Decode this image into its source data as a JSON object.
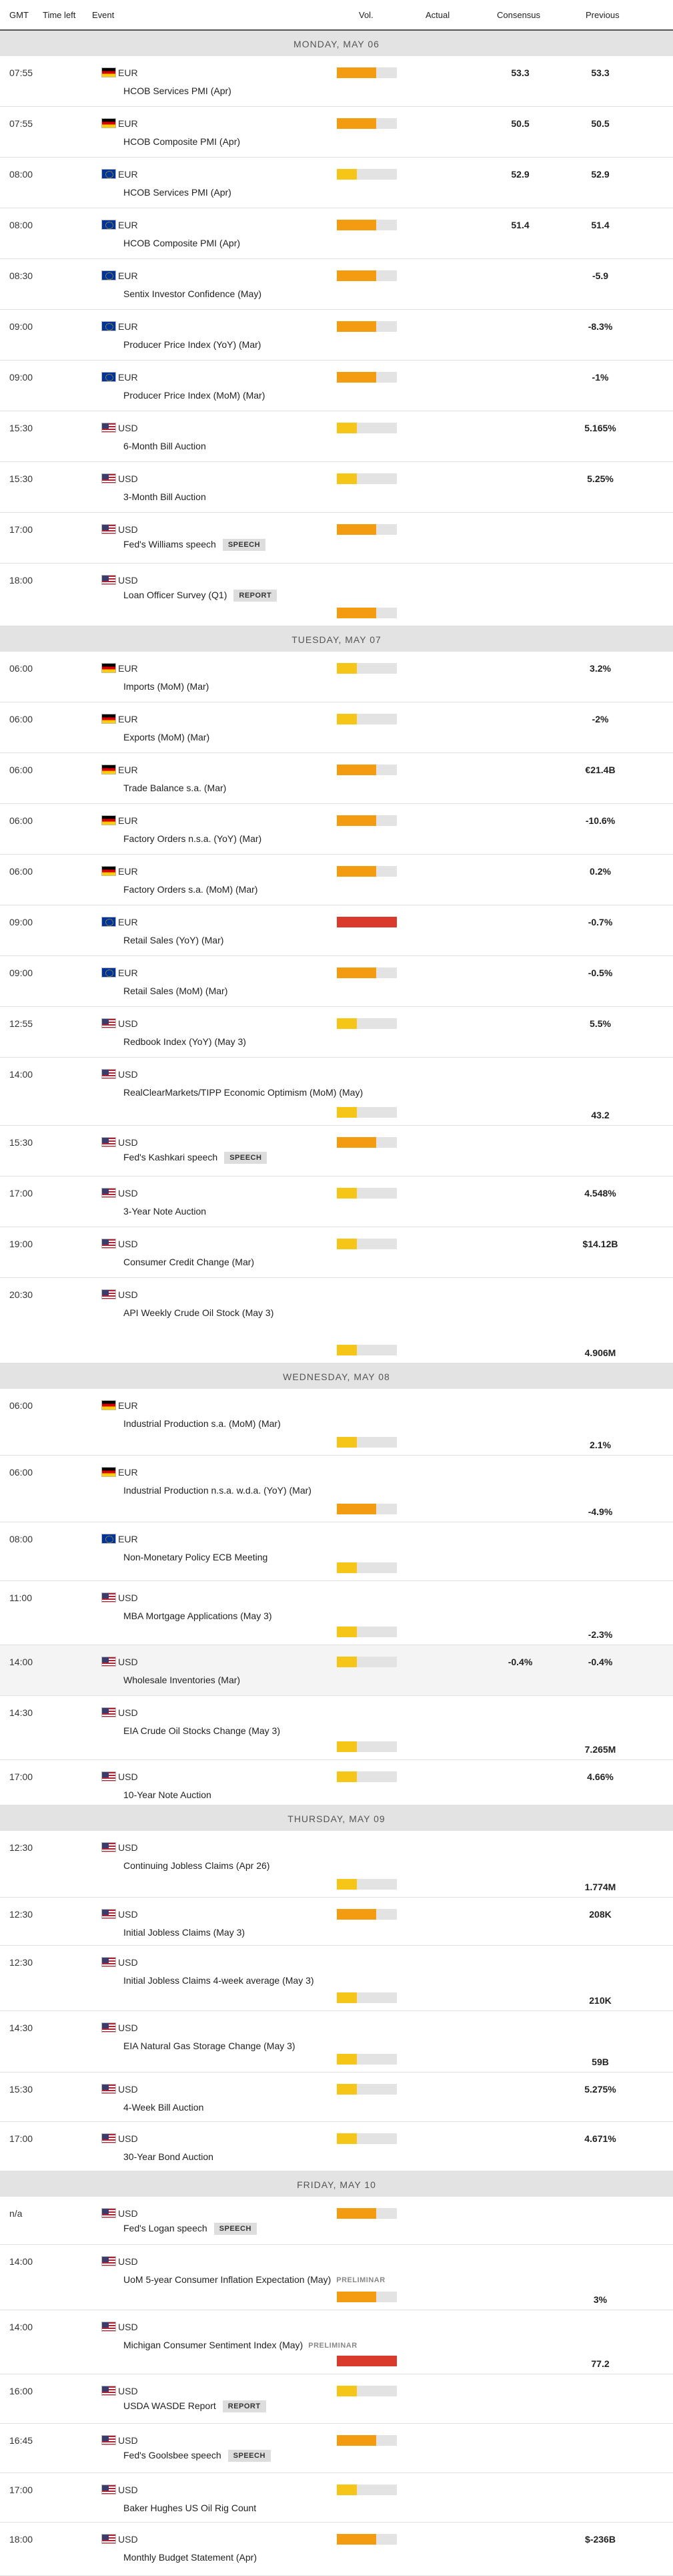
{
  "header": {
    "gmt": "GMT",
    "time_left": "Time left",
    "event": "Event",
    "vol": "Vol.",
    "actual": "Actual",
    "consensus": "Consensus",
    "previous": "Previous"
  },
  "colors": {
    "low": "#f5c518",
    "medium": "#f39c12",
    "high": "#d93a2b"
  },
  "levels": {
    "low": 0.33,
    "medium": 0.66,
    "high": 1.0
  },
  "days": [
    {
      "label": "MONDAY, MAY 06",
      "events": [
        {
          "time": "07:55",
          "flag": "de",
          "currency": "EUR",
          "name": "HCOB Services PMI (Apr)",
          "vol": "medium",
          "consensus": "53.3",
          "previous": "53.3"
        },
        {
          "time": "07:55",
          "flag": "de",
          "currency": "EUR",
          "name": "HCOB Composite PMI (Apr)",
          "vol": "medium",
          "consensus": "50.5",
          "previous": "50.5"
        },
        {
          "time": "08:00",
          "flag": "eu",
          "currency": "EUR",
          "name": "HCOB Services PMI (Apr)",
          "vol": "low",
          "consensus": "52.9",
          "previous": "52.9"
        },
        {
          "time": "08:00",
          "flag": "eu",
          "currency": "EUR",
          "name": "HCOB Composite PMI (Apr)",
          "vol": "medium",
          "consensus": "51.4",
          "previous": "51.4"
        },
        {
          "time": "08:30",
          "flag": "eu",
          "currency": "EUR",
          "name": "Sentix Investor Confidence (May)",
          "vol": "medium",
          "consensus": "",
          "previous": "-5.9"
        },
        {
          "time": "09:00",
          "flag": "eu",
          "currency": "EUR",
          "name": "Producer Price Index (YoY) (Mar)",
          "vol": "medium",
          "consensus": "",
          "previous": "-8.3%"
        },
        {
          "time": "09:00",
          "flag": "eu",
          "currency": "EUR",
          "name": "Producer Price Index (MoM) (Mar)",
          "vol": "medium",
          "consensus": "",
          "previous": "-1%"
        },
        {
          "time": "15:30",
          "flag": "us",
          "currency": "USD",
          "name": "6-Month Bill Auction",
          "vol": "low",
          "consensus": "",
          "previous": "5.165%"
        },
        {
          "time": "15:30",
          "flag": "us",
          "currency": "USD",
          "name": "3-Month Bill Auction",
          "vol": "low",
          "consensus": "",
          "previous": "5.25%"
        },
        {
          "time": "17:00",
          "flag": "us",
          "currency": "USD",
          "name": "Fed's Williams speech",
          "tag": "SPEECH",
          "vol": "medium",
          "consensus": "",
          "previous": ""
        },
        {
          "time": "18:00",
          "flag": "us",
          "currency": "USD",
          "name": "Loan Officer Survey (Q1)",
          "tag": "REPORT",
          "vol": "medium",
          "consensus": "",
          "previous": ""
        }
      ]
    },
    {
      "label": "TUESDAY, MAY 07",
      "events": [
        {
          "time": "06:00",
          "flag": "de",
          "currency": "EUR",
          "name": "Imports (MoM) (Mar)",
          "vol": "low",
          "consensus": "",
          "previous": "3.2%"
        },
        {
          "time": "06:00",
          "flag": "de",
          "currency": "EUR",
          "name": "Exports (MoM) (Mar)",
          "vol": "low",
          "consensus": "",
          "previous": "-2%"
        },
        {
          "time": "06:00",
          "flag": "de",
          "currency": "EUR",
          "name": "Trade Balance s.a. (Mar)",
          "vol": "medium",
          "consensus": "",
          "previous": "€21.4B"
        },
        {
          "time": "06:00",
          "flag": "de",
          "currency": "EUR",
          "name": "Factory Orders n.s.a. (YoY) (Mar)",
          "vol": "medium",
          "consensus": "",
          "previous": "-10.6%"
        },
        {
          "time": "06:00",
          "flag": "de",
          "currency": "EUR",
          "name": "Factory Orders s.a. (MoM) (Mar)",
          "vol": "medium",
          "consensus": "",
          "previous": "0.2%"
        },
        {
          "time": "09:00",
          "flag": "eu",
          "currency": "EUR",
          "name": "Retail Sales (YoY) (Mar)",
          "vol": "high",
          "consensus": "",
          "previous": "-0.7%"
        },
        {
          "time": "09:00",
          "flag": "eu",
          "currency": "EUR",
          "name": "Retail Sales (MoM) (Mar)",
          "vol": "medium",
          "consensus": "",
          "previous": "-0.5%"
        },
        {
          "time": "12:55",
          "flag": "us",
          "currency": "USD",
          "name": "Redbook Index (YoY) (May 3)",
          "vol": "low",
          "consensus": "",
          "previous": "5.5%"
        },
        {
          "time": "14:00",
          "flag": "us",
          "currency": "USD",
          "name": "RealClearMarkets/TIPP Economic Optimism (MoM) (May)",
          "vol": "low",
          "consensus": "",
          "previous": "43.2"
        },
        {
          "time": "15:30",
          "flag": "us",
          "currency": "USD",
          "name": "Fed's Kashkari speech",
          "tag": "SPEECH",
          "vol": "medium",
          "consensus": "",
          "previous": ""
        },
        {
          "time": "17:00",
          "flag": "us",
          "currency": "USD",
          "name": "3-Year Note Auction",
          "vol": "low",
          "consensus": "",
          "previous": "4.548%"
        },
        {
          "time": "19:00",
          "flag": "us",
          "currency": "USD",
          "name": "Consumer Credit Change (Mar)",
          "vol": "low",
          "consensus": "",
          "previous": "$14.12B"
        },
        {
          "time": "20:30",
          "flag": "us",
          "currency": "USD",
          "name": "API Weekly Crude Oil Stock (May 3)",
          "vol": "low",
          "consensus": "",
          "previous": "4.906M"
        }
      ]
    },
    {
      "label": "WEDNESDAY, MAY 08",
      "events": [
        {
          "time": "06:00",
          "flag": "de",
          "currency": "EUR",
          "name": "Industrial Production s.a. (MoM) (Mar)",
          "vol": "low",
          "consensus": "",
          "previous": "2.1%"
        },
        {
          "time": "06:00",
          "flag": "de",
          "currency": "EUR",
          "name": "Industrial Production n.s.a. w.d.a. (YoY) (Mar)",
          "vol": "medium",
          "consensus": "",
          "previous": "-4.9%"
        },
        {
          "time": "08:00",
          "flag": "eu",
          "currency": "EUR",
          "name": "Non-Monetary Policy ECB Meeting",
          "vol": "low",
          "consensus": "",
          "previous": ""
        },
        {
          "time": "11:00",
          "flag": "us",
          "currency": "USD",
          "name": "MBA Mortgage Applications (May 3)",
          "vol": "low",
          "consensus": "",
          "previous": "-2.3%"
        },
        {
          "time": "14:00",
          "flag": "us",
          "currency": "USD",
          "name": "Wholesale Inventories (Mar)",
          "vol": "low",
          "consensus": "-0.4%",
          "previous": "-0.4%"
        },
        {
          "time": "14:30",
          "flag": "us",
          "currency": "USD",
          "name": "EIA Crude Oil Stocks Change (May 3)",
          "vol": "low",
          "consensus": "",
          "previous": "7.265M"
        },
        {
          "time": "17:00",
          "flag": "us",
          "currency": "USD",
          "name": "10-Year Note Auction",
          "vol": "low",
          "consensus": "",
          "previous": "4.66%"
        }
      ]
    },
    {
      "label": "THURSDAY, MAY 09",
      "events": [
        {
          "time": "12:30",
          "flag": "us",
          "currency": "USD",
          "name": "Continuing Jobless Claims (Apr 26)",
          "vol": "low",
          "consensus": "",
          "previous": "1.774M"
        },
        {
          "time": "12:30",
          "flag": "us",
          "currency": "USD",
          "name": "Initial Jobless Claims (May 3)",
          "vol": "medium",
          "consensus": "",
          "previous": "208K"
        },
        {
          "time": "12:30",
          "flag": "us",
          "currency": "USD",
          "name": "Initial Jobless Claims 4-week average (May 3)",
          "vol": "low",
          "consensus": "",
          "previous": "210K"
        },
        {
          "time": "14:30",
          "flag": "us",
          "currency": "USD",
          "name": "EIA Natural Gas Storage Change (May 3)",
          "vol": "low",
          "consensus": "",
          "previous": "59B"
        },
        {
          "time": "15:30",
          "flag": "us",
          "currency": "USD",
          "name": "4-Week Bill Auction",
          "vol": "low",
          "consensus": "",
          "previous": "5.275%"
        },
        {
          "time": "17:00",
          "flag": "us",
          "currency": "USD",
          "name": "30-Year Bond Auction",
          "vol": "low",
          "consensus": "",
          "previous": "4.671%"
        }
      ]
    },
    {
      "label": "FRIDAY, MAY 10",
      "events": [
        {
          "time": "n/a",
          "flag": "us",
          "currency": "USD",
          "name": "Fed's Logan speech",
          "tag": "SPEECH",
          "vol": "medium",
          "consensus": "",
          "previous": ""
        },
        {
          "time": "14:00",
          "flag": "us",
          "currency": "USD",
          "name": "UoM 5-year Consumer Inflation Expectation (May)",
          "tag": "PRELIMINAR",
          "vol": "medium",
          "consensus": "",
          "previous": "3%"
        },
        {
          "time": "14:00",
          "flag": "us",
          "currency": "USD",
          "name": "Michigan Consumer Sentiment Index (May)",
          "tag": "PRELIMINAR",
          "vol": "high",
          "consensus": "",
          "previous": "77.2"
        },
        {
          "time": "16:00",
          "flag": "us",
          "currency": "USD",
          "name": "USDA WASDE Report",
          "tag": "REPORT",
          "vol": "low",
          "consensus": "",
          "previous": ""
        },
        {
          "time": "16:45",
          "flag": "us",
          "currency": "USD",
          "name": "Fed's Goolsbee speech",
          "tag": "SPEECH",
          "vol": "medium",
          "consensus": "",
          "previous": ""
        },
        {
          "time": "17:00",
          "flag": "us",
          "currency": "USD",
          "name": "Baker Hughes US Oil Rig Count",
          "vol": "low",
          "consensus": "",
          "previous": ""
        },
        {
          "time": "18:00",
          "flag": "us",
          "currency": "USD",
          "name": "Monthly Budget Statement (Apr)",
          "vol": "medium",
          "consensus": "",
          "previous": "$-236B"
        }
      ]
    }
  ]
}
